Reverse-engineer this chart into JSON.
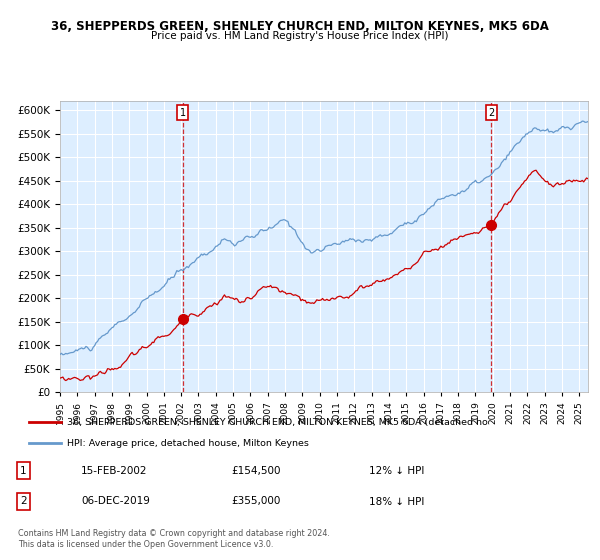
{
  "title_line1": "36, SHEPPERDS GREEN, SHENLEY CHURCH END, MILTON KEYNES, MK5 6DA",
  "title_line2": "Price paid vs. HM Land Registry's House Price Index (HPI)",
  "legend_line1": "36, SHEPPERDS GREEN, SHENLEY CHURCH END, MILTON KEYNES, MK5 6DA (detached ho",
  "legend_line2": "HPI: Average price, detached house, Milton Keynes",
  "annotation1_label": "1",
  "annotation1_date": "15-FEB-2002",
  "annotation1_price": "£154,500",
  "annotation1_hpi": "12% ↓ HPI",
  "annotation2_label": "2",
  "annotation2_date": "06-DEC-2019",
  "annotation2_price": "£355,000",
  "annotation2_hpi": "18% ↓ HPI",
  "footnote": "Contains HM Land Registry data © Crown copyright and database right 2024.\nThis data is licensed under the Open Government Licence v3.0.",
  "hpi_color": "#6699cc",
  "price_color": "#cc0000",
  "bg_color": "#ddeeff",
  "plot_bg": "#ddeeff",
  "ylim": [
    0,
    620000
  ],
  "yticks": [
    0,
    50000,
    100000,
    150000,
    200000,
    250000,
    300000,
    350000,
    400000,
    450000,
    500000,
    550000,
    600000
  ],
  "sale1_year": 2002.12,
  "sale1_value": 154500,
  "sale2_year": 2019.92,
  "sale2_value": 355000
}
